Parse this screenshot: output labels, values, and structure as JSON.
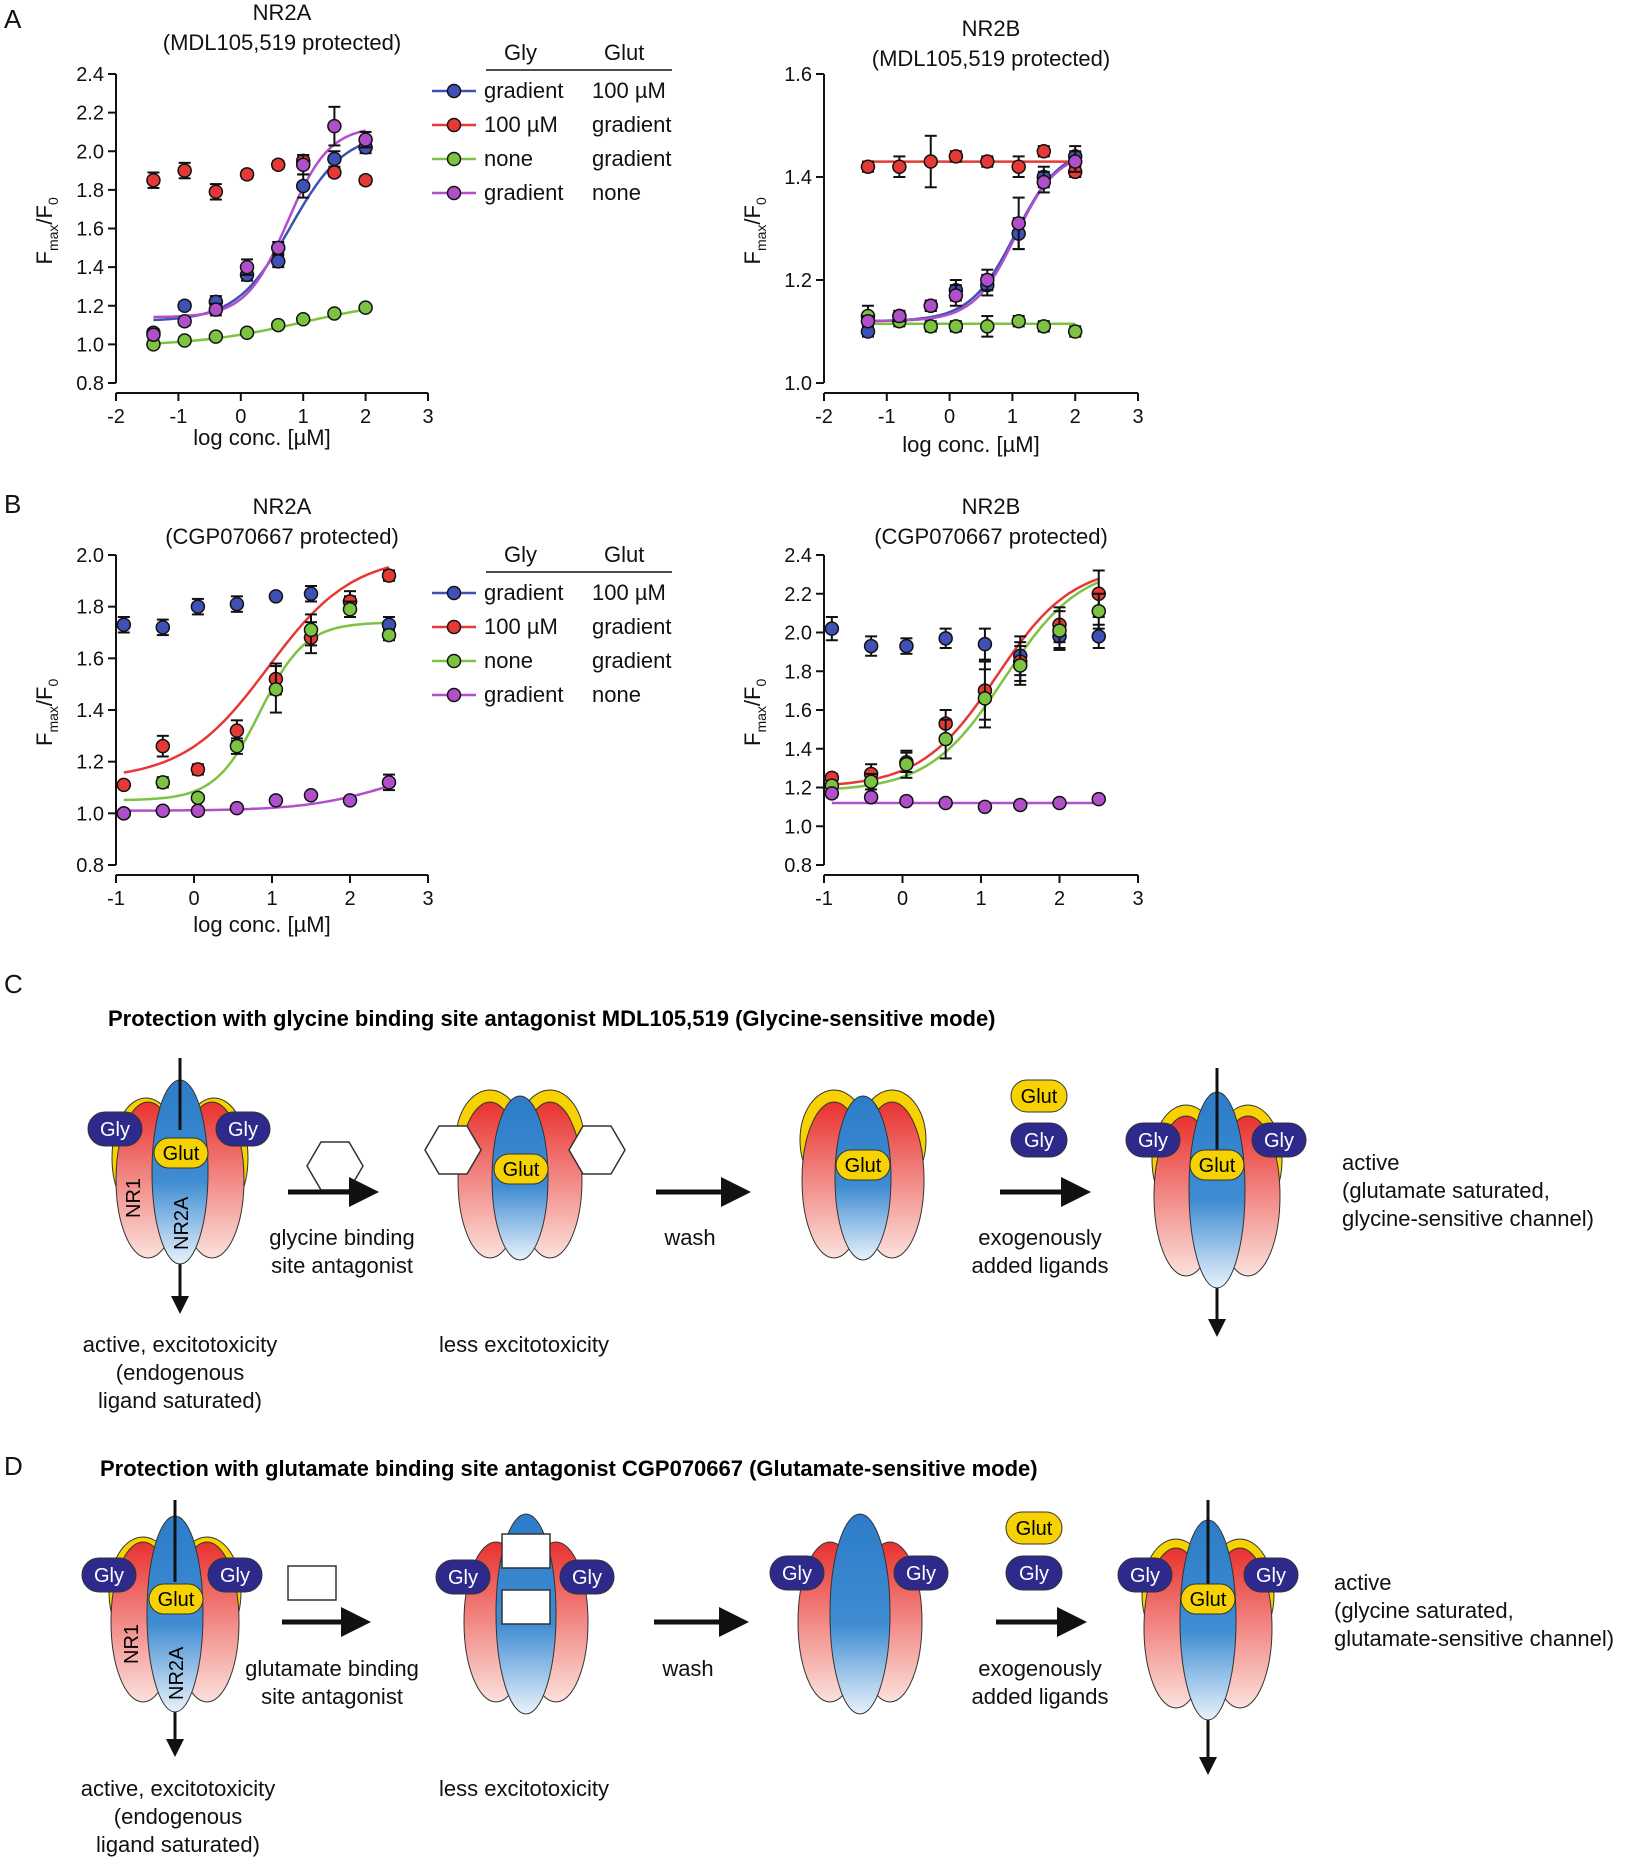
{
  "panel_letters": [
    "A",
    "B",
    "C",
    "D"
  ],
  "legend": {
    "header_gly": "Gly",
    "header_glut": "Glut",
    "rows": [
      {
        "gly": "gradient",
        "glut": "100 µM"
      },
      {
        "gly": "100 µM",
        "glut": "gradient"
      },
      {
        "gly": "none",
        "glut": "gradient"
      },
      {
        "gly": "gradient",
        "glut": "none"
      }
    ]
  },
  "chart_data": [
    {
      "id": "A1",
      "type": "scatter",
      "title": "NR2A",
      "subtitle": "(MDL105,519 protected)",
      "xlabel": "log conc. [µM]",
      "ylabel_main": "F",
      "ylabel_sub1": "max",
      "ylabel_mid": "/F",
      "ylabel_sub2": "0",
      "xlim": [
        -2,
        3
      ],
      "ylim": [
        0.8,
        2.4
      ],
      "xticks": [
        "-2",
        "-1",
        "0",
        "1",
        "2",
        "3"
      ],
      "yticks": [
        "0.8",
        "1.0",
        "1.2",
        "1.4",
        "1.6",
        "1.8",
        "2.0",
        "2.2",
        "2.4"
      ],
      "series": [
        {
          "name": "gradient / 100 µM",
          "color": "#3f51b5",
          "points": [
            [
              -1.4,
              1.06,
              0.02
            ],
            [
              -0.9,
              1.2,
              0.02
            ],
            [
              -0.4,
              1.22,
              0.03
            ],
            [
              0.1,
              1.36,
              0.03
            ],
            [
              0.6,
              1.43,
              0.03
            ],
            [
              1.0,
              1.82,
              0.06
            ],
            [
              1.5,
              1.96,
              0.04
            ],
            [
              2.0,
              2.02,
              0.03
            ]
          ],
          "fit": {
            "bottom": 1.12,
            "top": 2.1,
            "logec50": 0.8,
            "hill": 1.0
          }
        },
        {
          "name": "100 µM / gradient",
          "color": "#e53935",
          "points": [
            [
              -1.4,
              1.85,
              0.04
            ],
            [
              -0.9,
              1.9,
              0.04
            ],
            [
              -0.4,
              1.79,
              0.04
            ],
            [
              0.1,
              1.88,
              0.02
            ],
            [
              0.6,
              1.93,
              0.02
            ],
            [
              1.0,
              1.95,
              0.03
            ],
            [
              1.5,
              1.89,
              0.02
            ],
            [
              2.0,
              1.85,
              0.02
            ]
          ],
          "fit": null
        },
        {
          "name": "none / gradient",
          "color": "#7cc342",
          "points": [
            [
              -1.4,
              1.0,
              0.01
            ],
            [
              -0.9,
              1.02,
              0.01
            ],
            [
              -0.4,
              1.04,
              0.01
            ],
            [
              0.1,
              1.06,
              0.01
            ],
            [
              0.6,
              1.1,
              0.01
            ],
            [
              1.0,
              1.13,
              0.01
            ],
            [
              1.5,
              1.16,
              0.01
            ],
            [
              2.0,
              1.19,
              0.01
            ]
          ],
          "fit": {
            "bottom": 0.99,
            "top": 1.24,
            "logec50": 1.0,
            "hill": 0.5
          }
        },
        {
          "name": "gradient / none",
          "color": "#b04fc9",
          "points": [
            [
              -1.4,
              1.05,
              0.02
            ],
            [
              -0.9,
              1.12,
              0.02
            ],
            [
              -0.4,
              1.18,
              0.03
            ],
            [
              0.1,
              1.4,
              0.04
            ],
            [
              0.6,
              1.5,
              0.03
            ],
            [
              1.0,
              1.93,
              0.05
            ],
            [
              1.5,
              2.13,
              0.1
            ],
            [
              2.0,
              2.06,
              0.04
            ]
          ],
          "fit": {
            "bottom": 1.14,
            "top": 2.13,
            "logec50": 0.75,
            "hill": 1.3
          }
        }
      ]
    },
    {
      "id": "A2",
      "type": "scatter",
      "title": "NR2B",
      "subtitle": "(MDL105,519 protected)",
      "xlabel": "log conc. [µM]",
      "ylabel_main": "F",
      "ylabel_sub1": "max",
      "ylabel_mid": "/F",
      "ylabel_sub2": "0",
      "xlim": [
        -2,
        3
      ],
      "ylim": [
        1.0,
        1.6
      ],
      "xticks": [
        "-2",
        "-1",
        "0",
        "1",
        "2",
        "3"
      ],
      "yticks": [
        "1.0",
        "1.2",
        "1.4",
        "1.6"
      ],
      "series": [
        {
          "name": "gradient / 100 µM",
          "color": "#3f51b5",
          "points": [
            [
              -1.3,
              1.1,
              0.01
            ],
            [
              -0.8,
              1.13,
              0.01
            ],
            [
              -0.3,
              1.15,
              0.01
            ],
            [
              0.1,
              1.18,
              0.02
            ],
            [
              0.6,
              1.19,
              0.02
            ],
            [
              1.1,
              1.29,
              0.03
            ],
            [
              1.5,
              1.4,
              0.02
            ],
            [
              2.0,
              1.44,
              0.02
            ]
          ],
          "fit": {
            "bottom": 1.12,
            "top": 1.46,
            "logec50": 1.05,
            "hill": 1.2
          }
        },
        {
          "name": "100 µM / gradient",
          "color": "#e53935",
          "points": [
            [
              -1.3,
              1.42,
              0.01
            ],
            [
              -0.8,
              1.42,
              0.02
            ],
            [
              -0.3,
              1.43,
              0.05
            ],
            [
              0.1,
              1.44,
              0.01
            ],
            [
              0.6,
              1.43,
              0.01
            ],
            [
              1.1,
              1.42,
              0.02
            ],
            [
              1.5,
              1.45,
              0.01
            ],
            [
              2.0,
              1.41,
              0.01
            ]
          ],
          "fit": {
            "bottom": 1.43,
            "top": 1.43,
            "logec50": 0.5,
            "hill": 1.0
          }
        },
        {
          "name": "none / gradient",
          "color": "#7cc342",
          "points": [
            [
              -1.3,
              1.13,
              0.02
            ],
            [
              -0.8,
              1.12,
              0.01
            ],
            [
              -0.3,
              1.11,
              0.01
            ],
            [
              0.1,
              1.11,
              0.01
            ],
            [
              0.6,
              1.11,
              0.02
            ],
            [
              1.1,
              1.12,
              0.01
            ],
            [
              1.5,
              1.11,
              0.01
            ],
            [
              2.0,
              1.1,
              0.01
            ]
          ],
          "fit": {
            "bottom": 1.115,
            "top": 1.115,
            "logec50": 0.5,
            "hill": 1.0
          }
        },
        {
          "name": "gradient / none",
          "color": "#b04fc9",
          "points": [
            [
              -1.3,
              1.12,
              0.01
            ],
            [
              -0.8,
              1.13,
              0.01
            ],
            [
              -0.3,
              1.15,
              0.01
            ],
            [
              0.1,
              1.17,
              0.02
            ],
            [
              0.6,
              1.2,
              0.02
            ],
            [
              1.1,
              1.31,
              0.05
            ],
            [
              1.5,
              1.39,
              0.02
            ],
            [
              2.0,
              1.43,
              0.02
            ]
          ],
          "fit": {
            "bottom": 1.12,
            "top": 1.45,
            "logec50": 1.05,
            "hill": 1.3
          }
        }
      ]
    },
    {
      "id": "B1",
      "type": "scatter",
      "title": "NR2A",
      "subtitle": "(CGP070667 protected)",
      "xlabel": "log conc. [µM]",
      "ylabel_main": "F",
      "ylabel_sub1": "max",
      "ylabel_mid": "/F",
      "ylabel_sub2": "0",
      "xlim": [
        -1,
        3
      ],
      "ylim": [
        0.8,
        2.0
      ],
      "xticks": [
        "-1",
        "0",
        "1",
        "2",
        "3"
      ],
      "yticks": [
        "0.8",
        "1.0",
        "1.2",
        "1.4",
        "1.6",
        "1.8",
        "2.0"
      ],
      "series": [
        {
          "name": "gradient / 100 µM",
          "color": "#3f51b5",
          "points": [
            [
              -0.9,
              1.73,
              0.03
            ],
            [
              -0.4,
              1.72,
              0.03
            ],
            [
              0.05,
              1.8,
              0.03
            ],
            [
              0.55,
              1.81,
              0.03
            ],
            [
              1.05,
              1.84,
              0.01
            ],
            [
              1.5,
              1.85,
              0.03
            ],
            [
              2.0,
              1.82,
              0.02
            ],
            [
              2.5,
              1.73,
              0.03
            ]
          ],
          "fit": null
        },
        {
          "name": "100 µM / gradient",
          "color": "#e53935",
          "points": [
            [
              -0.9,
              1.11,
              0.01
            ],
            [
              -0.4,
              1.26,
              0.04
            ],
            [
              0.05,
              1.17,
              0.02
            ],
            [
              0.55,
              1.32,
              0.04
            ],
            [
              1.05,
              1.52,
              0.06
            ],
            [
              1.5,
              1.68,
              0.06
            ],
            [
              2.0,
              1.82,
              0.04
            ],
            [
              2.5,
              1.92,
              0.02
            ]
          ],
          "fit": {
            "bottom": 1.13,
            "top": 2.0,
            "logec50": 0.95,
            "hill": 0.8
          }
        },
        {
          "name": "none / gradient",
          "color": "#7cc342",
          "points": [
            [
              -0.9,
              1.0,
              0.01
            ],
            [
              -0.4,
              1.12,
              0.02
            ],
            [
              0.05,
              1.06,
              0.01
            ],
            [
              0.55,
              1.26,
              0.03
            ],
            [
              1.05,
              1.48,
              0.09
            ],
            [
              1.5,
              1.71,
              0.06
            ],
            [
              2.0,
              1.79,
              0.03
            ],
            [
              2.5,
              1.69,
              0.02
            ]
          ],
          "fit": {
            "bottom": 1.05,
            "top": 1.74,
            "logec50": 0.85,
            "hill": 1.5
          }
        },
        {
          "name": "gradient / none",
          "color": "#b04fc9",
          "points": [
            [
              -0.9,
              1.0,
              0.01
            ],
            [
              -0.4,
              1.01,
              0.01
            ],
            [
              0.05,
              1.01,
              0.01
            ],
            [
              0.55,
              1.02,
              0.01
            ],
            [
              1.05,
              1.05,
              0.01
            ],
            [
              1.5,
              1.07,
              0.01
            ],
            [
              2.0,
              1.05,
              0.01
            ],
            [
              2.5,
              1.12,
              0.03
            ]
          ],
          "fit": {
            "bottom": 1.01,
            "top": 1.2,
            "logec50": 2.5,
            "hill": 0.8
          }
        }
      ]
    },
    {
      "id": "B2",
      "type": "scatter",
      "title": "NR2B",
      "subtitle": "(CGP070667 protected)",
      "xlabel": "",
      "ylabel_main": "F",
      "ylabel_sub1": "max",
      "ylabel_mid": "/F",
      "ylabel_sub2": "0",
      "xlim": [
        -1,
        3
      ],
      "ylim": [
        0.8,
        2.4
      ],
      "xticks": [
        "-1",
        "0",
        "1",
        "2",
        "3"
      ],
      "yticks": [
        "0.8",
        "1.0",
        "1.2",
        "1.4",
        "1.6",
        "1.8",
        "2.0",
        "2.2",
        "2.4"
      ],
      "series": [
        {
          "name": "gradient / 100 µM",
          "color": "#3f51b5",
          "points": [
            [
              -0.9,
              2.02,
              0.06
            ],
            [
              -0.4,
              1.93,
              0.05
            ],
            [
              0.05,
              1.93,
              0.04
            ],
            [
              0.55,
              1.97,
              0.05
            ],
            [
              1.05,
              1.94,
              0.08
            ],
            [
              1.5,
              1.88,
              0.1
            ],
            [
              2.0,
              1.98,
              0.06
            ],
            [
              2.5,
              1.98,
              0.06
            ]
          ],
          "fit": null
        },
        {
          "name": "100 µM / gradient",
          "color": "#e53935",
          "points": [
            [
              -0.9,
              1.25,
              0.02
            ],
            [
              -0.4,
              1.27,
              0.05
            ],
            [
              0.05,
              1.33,
              0.05
            ],
            [
              0.55,
              1.53,
              0.07
            ],
            [
              1.05,
              1.7,
              0.15
            ],
            [
              1.5,
              1.85,
              0.1
            ],
            [
              2.0,
              2.04,
              0.09
            ],
            [
              2.5,
              2.2,
              0.12
            ]
          ],
          "fit": {
            "bottom": 1.2,
            "top": 2.35,
            "logec50": 1.2,
            "hill": 0.9
          }
        },
        {
          "name": "none / gradient",
          "color": "#7cc342",
          "points": [
            [
              -0.9,
              1.21,
              0.02
            ],
            [
              -0.4,
              1.23,
              0.04
            ],
            [
              0.05,
              1.32,
              0.07
            ],
            [
              0.55,
              1.45,
              0.1
            ],
            [
              1.05,
              1.66,
              0.15
            ],
            [
              1.5,
              1.83,
              0.1
            ],
            [
              2.0,
              2.01,
              0.1
            ],
            [
              2.5,
              2.11,
              0.09
            ]
          ],
          "fit": {
            "bottom": 1.18,
            "top": 2.35,
            "logec50": 1.3,
            "hill": 0.9
          }
        },
        {
          "name": "gradient / none",
          "color": "#b04fc9",
          "points": [
            [
              -0.9,
              1.17,
              0.02
            ],
            [
              -0.4,
              1.15,
              0.01
            ],
            [
              0.05,
              1.13,
              0.01
            ],
            [
              0.55,
              1.12,
              0.01
            ],
            [
              1.05,
              1.1,
              0.01
            ],
            [
              1.5,
              1.11,
              0.01
            ],
            [
              2.0,
              1.12,
              0.01
            ],
            [
              2.5,
              1.14,
              0.01
            ]
          ],
          "fit": {
            "bottom": 1.12,
            "top": 1.12,
            "logec50": 1.0,
            "hill": 1.0
          }
        }
      ]
    }
  ],
  "panelC": {
    "title": "Protection with glycine binding site antagonist MDL105,519 (Glycine-sensitive mode)",
    "gly": "Gly",
    "glut": "Glut",
    "nr1": "NR1",
    "nr2a": "NR2A",
    "step1_line1": "glycine binding",
    "step1_line2": "site antagonist",
    "step2": "wash",
    "step3_line1": "exogenously",
    "step3_line2": "added ligands",
    "cap1_line1": "active, excitotoxicity",
    "cap1_line2": "(endogenous",
    "cap1_line3": "ligand saturated)",
    "cap2": "less excitotoxicity",
    "result_line1": "active",
    "result_line2": "(glutamate saturated,",
    "result_line3": "glycine-sensitive channel)"
  },
  "panelD": {
    "title": "Protection with glutamate binding site antagonist CGP070667 (Glutamate-sensitive mode)",
    "gly": "Gly",
    "glut": "Glut",
    "nr1": "NR1",
    "nr2a": "NR2A",
    "step1_line1": "glutamate binding",
    "step1_line2": "site antagonist",
    "step2": "wash",
    "step3_line1": "exogenously",
    "step3_line2": "added ligands",
    "cap1_line1": "active, excitotoxicity",
    "cap1_line2": "(endogenous",
    "cap1_line3": "ligand saturated)",
    "cap2": "less excitotoxicity",
    "result_line1": "active",
    "result_line2": "(glycine saturated,",
    "result_line3": "glutamate-sensitive channel)"
  },
  "colors": {
    "blue_dot": "#3f51b5",
    "red_dot": "#e53935",
    "green_dot": "#7cc342",
    "purple_dot": "#b04fc9",
    "receptor_red": "#e8322f",
    "receptor_blue": "#2c7cc8",
    "gly_fill": "#2d2a8c",
    "glut_fill": "#f5d200"
  }
}
